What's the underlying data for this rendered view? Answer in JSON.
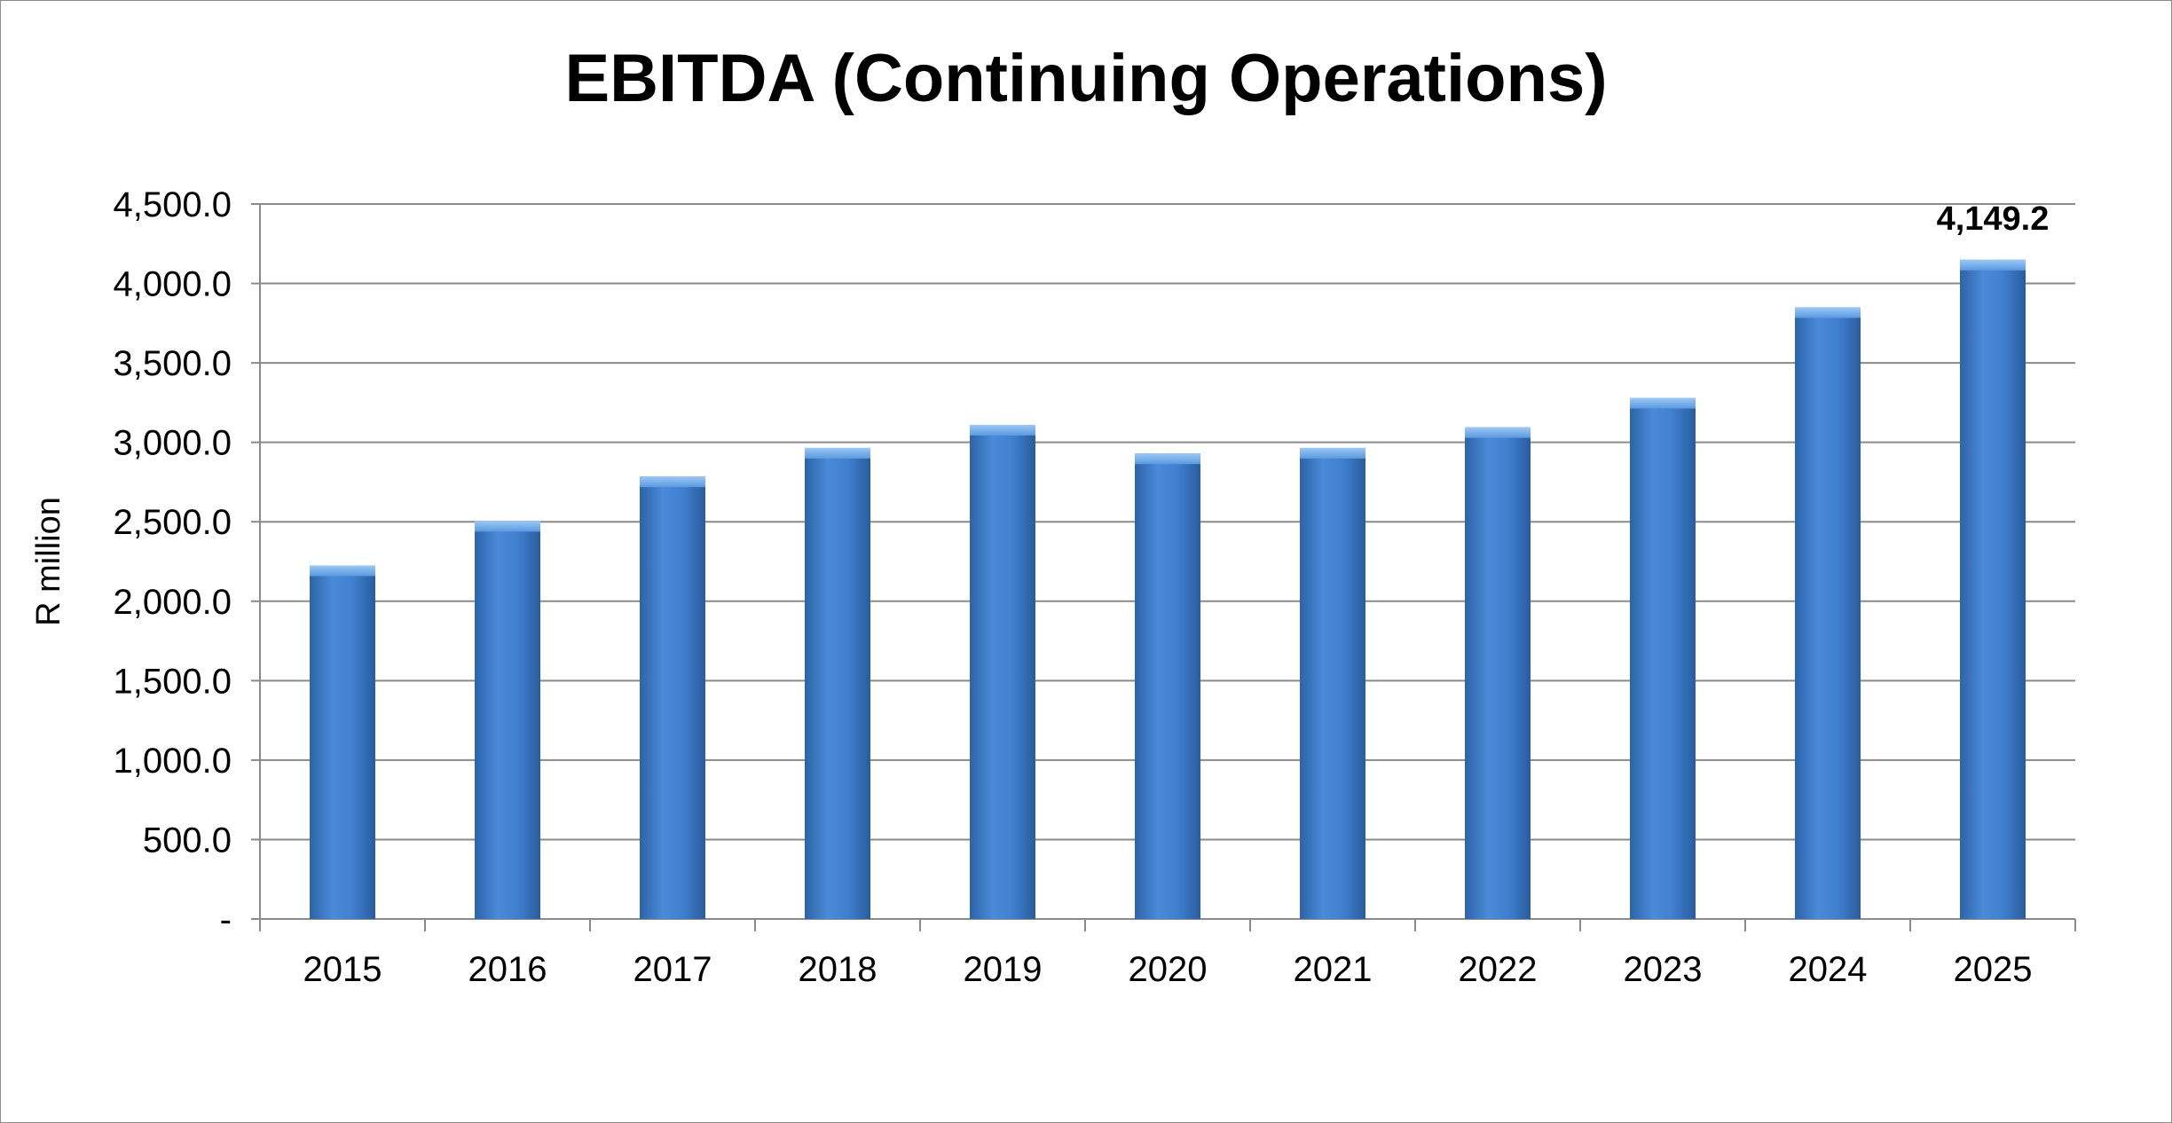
{
  "chart_data": {
    "type": "bar",
    "title": "EBITDA (Continuing Operations)",
    "xlabel": "",
    "ylabel": "R million",
    "categories": [
      "2015",
      "2016",
      "2017",
      "2018",
      "2019",
      "2020",
      "2021",
      "2022",
      "2023",
      "2024",
      "2025"
    ],
    "values": [
      2225,
      2505,
      2785,
      2965,
      3110,
      2930,
      2965,
      3095,
      3280,
      3850,
      4149.2
    ],
    "ylim": [
      0,
      4500
    ],
    "yticks": [
      0,
      500,
      1000,
      1500,
      2000,
      2500,
      3000,
      3500,
      4000,
      4500
    ],
    "ytick_labels": [
      "-",
      "500.0",
      "1,000.0",
      "1,500.0",
      "2,000.0",
      "2,500.0",
      "3,000.0",
      "3,500.0",
      "4,000.0",
      "4,500.0"
    ],
    "data_labels": [
      {
        "category": "2025",
        "text": "4,149.2"
      }
    ],
    "grid": true,
    "legend": "none",
    "bar_color": "#3A78C8"
  }
}
